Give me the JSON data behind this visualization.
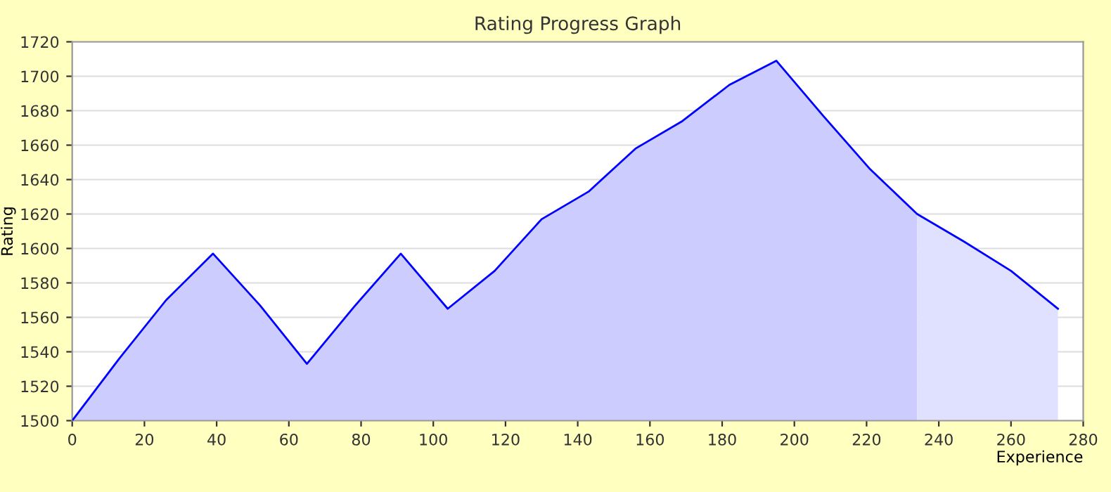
{
  "chart_data": {
    "type": "area",
    "title": "Rating Progress Graph",
    "xlabel": "Experience",
    "ylabel": "Rating",
    "series": [
      {
        "color": "#ccccff",
        "x": [
          0,
          13,
          26,
          39,
          52,
          65,
          78,
          91,
          104,
          117,
          130,
          143,
          156,
          169,
          182,
          195,
          208,
          221,
          234
        ],
        "values": [
          1500,
          1536,
          1570,
          1597,
          1567,
          1533,
          1566,
          1597,
          1565,
          1587,
          1617,
          1633,
          1658,
          1674,
          1695,
          1709,
          1677,
          1646,
          1620
        ]
      },
      {
        "color": "#e0e0ff",
        "x": [
          234,
          247,
          260,
          273
        ],
        "values": [
          1620,
          1604,
          1587,
          1565
        ]
      },
      {
        "type": "line",
        "color": "#0000ff",
        "x": [
          0,
          13,
          26,
          39,
          52,
          65,
          78,
          91,
          104,
          117,
          130,
          143,
          156,
          169,
          182,
          195,
          208,
          221,
          234,
          247,
          260,
          273
        ],
        "values": [
          1500,
          1536,
          1570,
          1597,
          1567,
          1533,
          1566,
          1597,
          1565,
          1587,
          1617,
          1633,
          1658,
          1674,
          1695,
          1709,
          1677,
          1646,
          1620,
          1604,
          1587,
          1565
        ]
      }
    ],
    "xlim": [
      0,
      280
    ],
    "xticks": [
      0,
      20,
      40,
      60,
      80,
      100,
      120,
      140,
      160,
      180,
      200,
      220,
      240,
      260,
      280
    ],
    "ylim": [
      1500,
      1720
    ],
    "yticks": [
      1500,
      1520,
      1540,
      1560,
      1580,
      1600,
      1620,
      1640,
      1660,
      1680,
      1700,
      1720
    ],
    "grid": "y",
    "legend": false,
    "marker": "none",
    "line_style": "solid"
  }
}
